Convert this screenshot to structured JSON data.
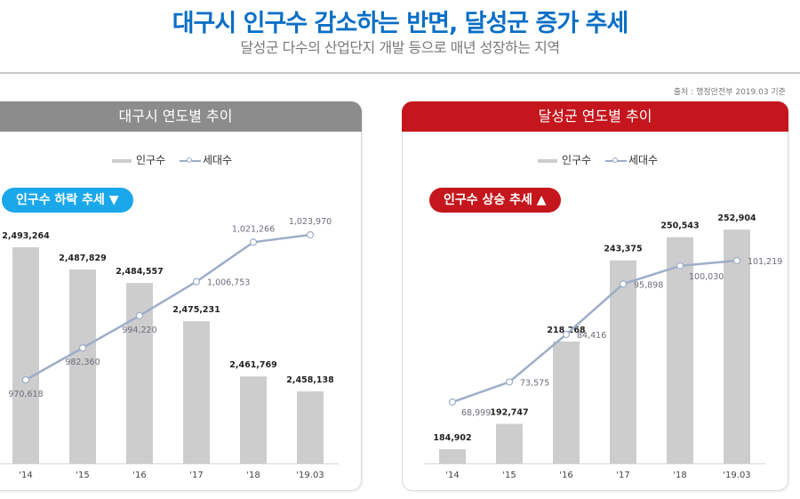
{
  "header": {
    "title": "대구시 인구수 감소하는 반면, 달성군 증가 추세",
    "subtitle": "달성군 다수의 산업단지 개발 등으로 매년 성장하는 지역",
    "source": "출처 : 행정안전부 2019.03 기준"
  },
  "colors": {
    "title": "#0b6fc6",
    "bar": "#cdcdcd",
    "line": "#9eadc8",
    "left_header": "#8c8c8c",
    "right_header": "#c4161c",
    "down_badge": "#1aa8ea",
    "up_badge": "#c4161c"
  },
  "chart_data": [
    {
      "type": "bar",
      "title": "대구시 연도별 추이",
      "badge": "인구수 하락 추세 ▼",
      "legend": [
        "인구수",
        "세대수"
      ],
      "legend_placement": "top-center",
      "categories": [
        "'14",
        "'15",
        "'16",
        "'17",
        "'18",
        "'19.03"
      ],
      "series": [
        {
          "name": "인구수",
          "type": "bar",
          "values": [
            2493264,
            2487829,
            2484557,
            2475231,
            2461769,
            2458138
          ],
          "labels": [
            "2,493,264",
            "2,487,829",
            "2,484,557",
            "2,475,231",
            "2,461,769",
            "2,458,138"
          ],
          "ylim": [
            2440575,
            2501500
          ]
        },
        {
          "name": "세대수",
          "type": "line",
          "values": [
            970618,
            982360,
            994220,
            1006753,
            1021266,
            1023970
          ],
          "labels": [
            "970,618",
            "982,360",
            "994,220",
            "1,006,753",
            "1,021,266",
            "1,023,970"
          ],
          "ylim": [
            939850,
            1031830
          ]
        }
      ],
      "xlabel": "",
      "ylabel": "",
      "grid": false
    },
    {
      "type": "bar",
      "title": "달성군 연도별 추이",
      "badge": "인구수 상승 추세 ▲",
      "legend": [
        "인구수",
        "세대수"
      ],
      "legend_placement": "top-center",
      "categories": [
        "'14",
        "'15",
        "'16",
        "'17",
        "'18",
        "'19.03"
      ],
      "series": [
        {
          "name": "인구수",
          "type": "bar",
          "values": [
            184902,
            192747,
            218268,
            243375,
            250543,
            252904
          ],
          "labels": [
            "184,902",
            "192,747",
            "218,268",
            "243,375",
            "250,543",
            "252,904"
          ],
          "ylim": [
            180500,
            257900
          ]
        },
        {
          "name": "세대수",
          "type": "line",
          "values": [
            68999,
            73575,
            84416,
            95898,
            100030,
            101219
          ],
          "labels": [
            "68,999",
            "73,575",
            "84,416",
            "95,898",
            "100,030",
            "101,219"
          ],
          "ylim": [
            55020,
            111960
          ]
        }
      ],
      "xlabel": "",
      "ylabel": "",
      "grid": false
    }
  ]
}
